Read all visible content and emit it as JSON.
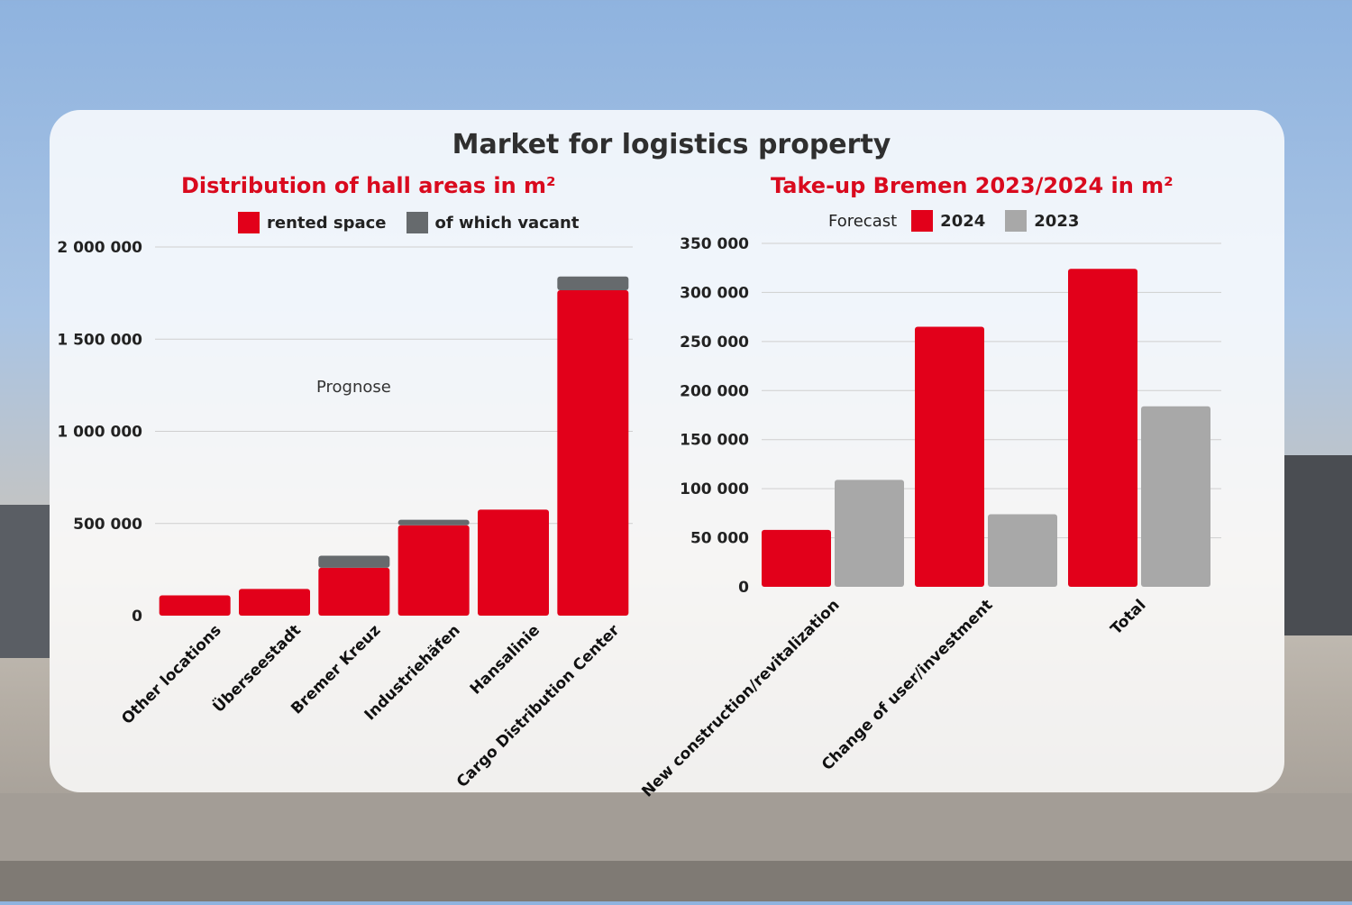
{
  "title": "Market for logistics property",
  "colors": {
    "red": "#e2001a",
    "dark_gray": "#666a6d",
    "light_gray": "#a8a8a8"
  },
  "chart_data": [
    {
      "type": "bar",
      "stacked": true,
      "title": "Distribution of hall areas in m²",
      "annotation": "Prognose",
      "categories": [
        "Other locations",
        "Überseestadt",
        "Bremer Kreuz",
        "Industriehäfen",
        "Hansalinie",
        "Cargo Distribution Center"
      ],
      "series": [
        {
          "name": "rented space",
          "color": "#e2001a",
          "values": [
            110000,
            145000,
            260000,
            490000,
            575000,
            1765000
          ]
        },
        {
          "name": "of which vacant",
          "color": "#666a6d",
          "values": [
            0,
            0,
            65000,
            30000,
            0,
            75000
          ]
        }
      ],
      "ylim": [
        0,
        2000000
      ],
      "yticks": [
        0,
        500000,
        1000000,
        1500000,
        2000000
      ],
      "ytick_labels": [
        "0",
        "500 000",
        "1 000 000",
        "1 500 000",
        "2 000 000"
      ],
      "grid": true,
      "legend": "top"
    },
    {
      "type": "bar",
      "title": "Take-up Bremen 2023/2024 in m²",
      "legend_prefix": "Forecast",
      "categories": [
        "New construction/revitalization",
        "Change of user/investment",
        "Total"
      ],
      "series": [
        {
          "name": "2024",
          "color": "#e2001a",
          "values": [
            58000,
            265000,
            324000
          ]
        },
        {
          "name": "2023",
          "color": "#a8a8a8",
          "values": [
            109000,
            74000,
            184000
          ]
        }
      ],
      "ylim": [
        0,
        350000
      ],
      "yticks": [
        0,
        50000,
        100000,
        150000,
        200000,
        250000,
        300000,
        350000
      ],
      "ytick_labels": [
        "0",
        "50 000",
        "100 000",
        "150 000",
        "200 000",
        "250 000",
        "300 000",
        "350 000"
      ],
      "grid": true,
      "legend": "top"
    }
  ]
}
